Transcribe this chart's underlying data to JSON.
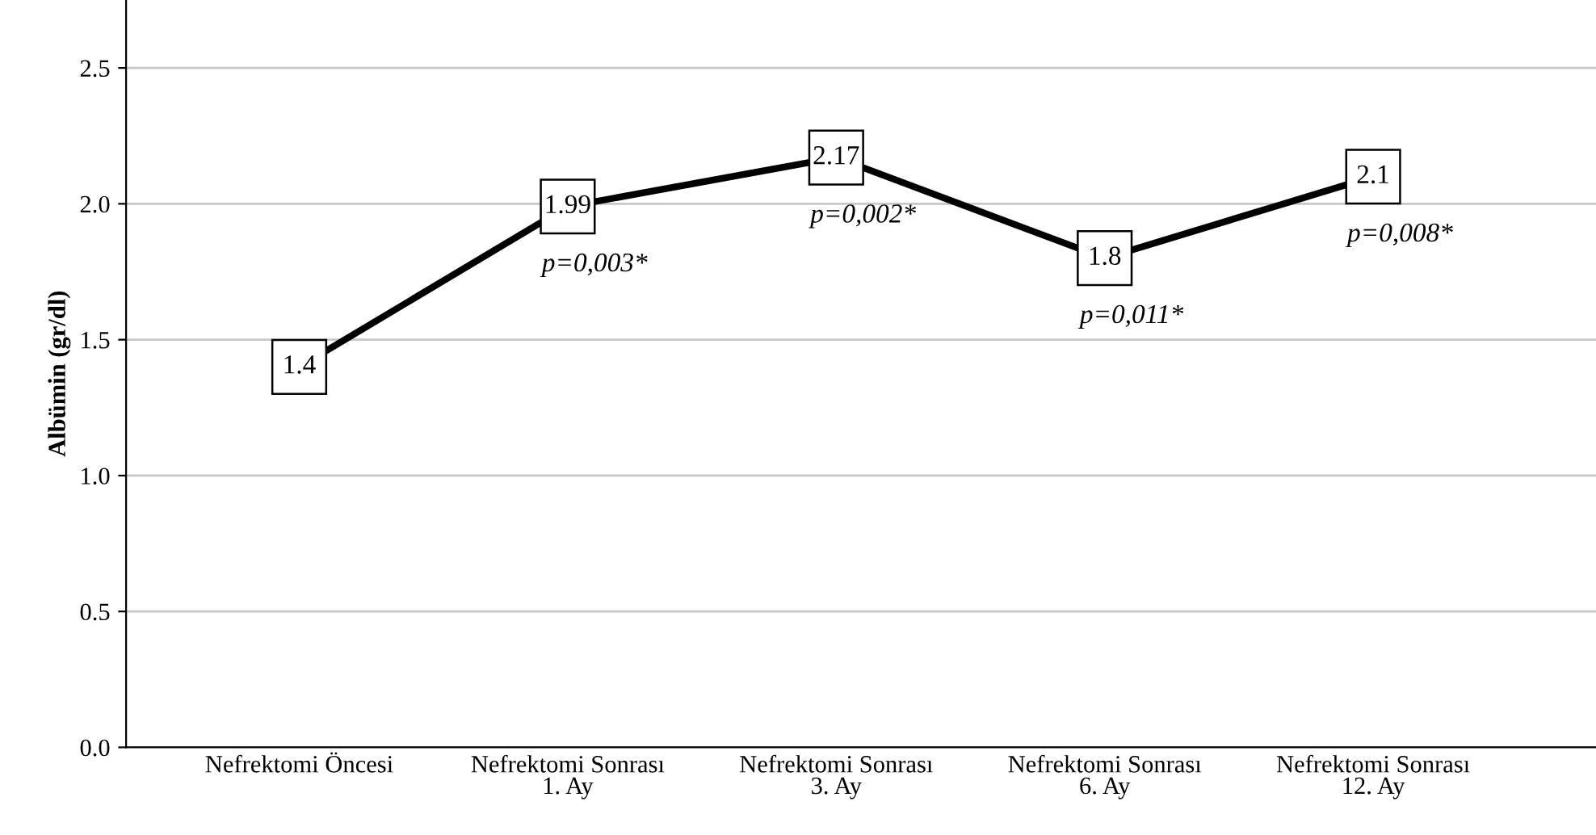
{
  "chart_data": {
    "type": "line",
    "ylabel": "Albümin (gr/dl)",
    "categories": [
      "Nefrektomi Öncesi",
      "Nefrektomi Sonrası\n1. Ay",
      "Nefrektomi Sonrası\n3. Ay",
      "Nefrektomi Sonrası\n6. Ay",
      "Nefrektomi Sonrası\n12. Ay"
    ],
    "series": [
      {
        "color": "#000000",
        "values": [
          1.4,
          1.99,
          2.17,
          1.8,
          2.1
        ]
      }
    ],
    "ylim": [
      0,
      2.75
    ],
    "yticks": [
      {
        "value": 0,
        "label": "0.0"
      },
      {
        "value": 0.5,
        "label": "0.5"
      },
      {
        "value": 1,
        "label": "1.0"
      },
      {
        "value": 1.5,
        "label": "1.5"
      },
      {
        "value": 2,
        "label": "2.0"
      },
      {
        "value": 2.5,
        "label": "2.5"
      }
    ],
    "grid": "y",
    "data_labels": true,
    "marker": "square",
    "line_style": "solid",
    "legend": false,
    "annotations": [
      "p=0,003*",
      "p=0,002*",
      "p=0,011*",
      "p=0,008*"
    ]
  }
}
